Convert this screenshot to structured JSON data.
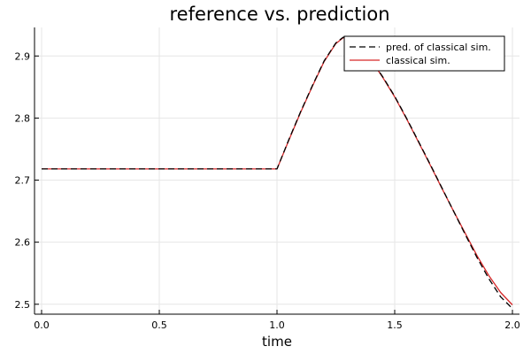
{
  "chart_data": {
    "type": "line",
    "title": "reference vs. prediction",
    "xlabel": "time",
    "ylabel": "",
    "xlim": [
      -0.03,
      2.03
    ],
    "ylim": [
      2.484,
      2.946
    ],
    "xticks": [
      0.0,
      0.5,
      1.0,
      1.5,
      2.0
    ],
    "xtick_labels": [
      "0.0",
      "0.5",
      "1.0",
      "1.5",
      "2.0"
    ],
    "yticks": [
      2.5,
      2.6,
      2.7,
      2.8,
      2.9
    ],
    "ytick_labels": [
      "2.5",
      "2.6",
      "2.7",
      "2.8",
      "2.9"
    ],
    "grid": true,
    "legend_position": "top-right",
    "series": [
      {
        "name": "pred. of classical sim.",
        "color": "#000000",
        "dash": "dashed",
        "x": [
          0.0,
          0.2,
          0.4,
          0.6,
          0.8,
          1.0,
          1.05,
          1.1,
          1.15,
          1.2,
          1.25,
          1.28,
          1.3,
          1.32,
          1.35,
          1.4,
          1.45,
          1.5,
          1.55,
          1.6,
          1.65,
          1.7,
          1.75,
          1.8,
          1.85,
          1.9,
          1.95,
          2.0
        ],
        "y": [
          2.718,
          2.718,
          2.718,
          2.718,
          2.718,
          2.718,
          2.765,
          2.81,
          2.852,
          2.892,
          2.921,
          2.93,
          2.932,
          2.929,
          2.918,
          2.894,
          2.866,
          2.835,
          2.8,
          2.763,
          2.726,
          2.688,
          2.65,
          2.612,
          2.575,
          2.541,
          2.512,
          2.493
        ]
      },
      {
        "name": "classical sim.",
        "color": "#d62728",
        "dash": "solid",
        "x": [
          0.0,
          0.2,
          0.4,
          0.6,
          0.8,
          1.0,
          1.05,
          1.1,
          1.15,
          1.2,
          1.25,
          1.28,
          1.3,
          1.32,
          1.35,
          1.4,
          1.45,
          1.5,
          1.55,
          1.6,
          1.65,
          1.7,
          1.75,
          1.8,
          1.85,
          1.9,
          1.95,
          2.0
        ],
        "y": [
          2.718,
          2.718,
          2.718,
          2.718,
          2.718,
          2.718,
          2.764,
          2.809,
          2.851,
          2.891,
          2.92,
          2.929,
          2.931,
          2.928,
          2.917,
          2.893,
          2.865,
          2.834,
          2.799,
          2.762,
          2.725,
          2.687,
          2.65,
          2.614,
          2.578,
          2.546,
          2.519,
          2.499
        ]
      }
    ]
  }
}
